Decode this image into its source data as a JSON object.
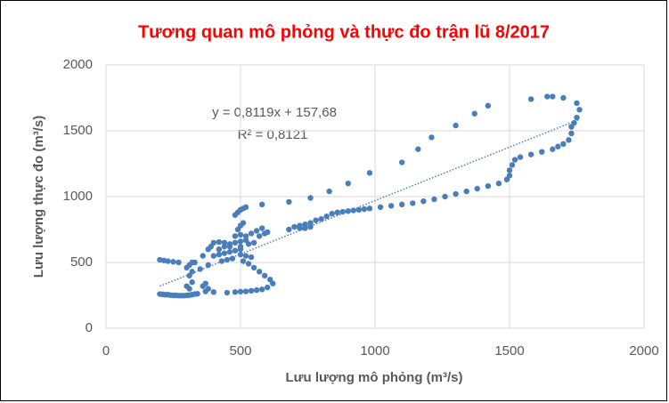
{
  "chart_data": {
    "type": "scatter",
    "title": "Tương quan mô phỏng và thực đo trận lũ 8/2017",
    "x_label": "Lưu lượng mô phỏng (m³/s)",
    "y_label": "Lưu lượng thực đo (m³/s)",
    "color": "#4a7ebb",
    "grid": true,
    "xlim": [
      0,
      2000
    ],
    "ylim": [
      0,
      2000
    ],
    "xticks": [
      0,
      500,
      1000,
      1500,
      2000
    ],
    "yticks": [
      0,
      500,
      1000,
      1500,
      2000
    ],
    "trendline": {
      "slope": 0.8119,
      "intercept": 157.68,
      "label": "y = 0,8119x + 157,68",
      "r2_label": "R² = 0,8121"
    },
    "x": [
      200,
      210,
      220,
      230,
      240,
      250,
      260,
      270,
      280,
      290,
      300,
      310,
      320,
      330,
      340,
      310,
      300,
      320,
      310,
      320,
      300,
      310,
      320,
      200,
      215,
      230,
      250,
      270,
      370,
      400,
      450,
      480,
      500,
      520,
      540,
      560,
      580,
      600,
      620,
      610,
      590,
      570,
      550,
      530,
      510,
      360,
      370,
      380,
      400,
      420,
      440,
      460,
      480,
      500,
      420,
      440,
      460,
      480,
      500,
      520,
      400,
      420,
      440,
      460,
      480,
      500,
      520,
      540,
      560,
      580,
      600,
      500,
      520,
      540,
      470,
      450,
      500,
      530,
      550,
      570,
      590,
      430,
      380,
      350,
      330,
      360,
      380,
      390,
      480,
      490,
      500,
      510,
      520,
      490,
      500,
      510,
      580,
      680,
      760,
      830,
      900,
      980,
      1100,
      1160,
      1210,
      1300,
      1370,
      1420,
      680,
      700,
      720,
      740,
      760,
      780,
      800,
      820,
      840,
      860,
      880,
      900,
      920,
      940,
      960,
      980,
      1020,
      1060,
      1100,
      1140,
      1180,
      1220,
      1260,
      1300,
      1340,
      1380,
      1420,
      1460,
      1490,
      1500,
      1500,
      1510,
      1520,
      1540,
      1580,
      1620,
      1660,
      1680,
      1700,
      1720,
      1730,
      1730,
      1740,
      1750,
      1760,
      1750,
      1700,
      1660,
      1640,
      1580,
      740,
      760,
      720
    ],
    "values": [
      260,
      258,
      255,
      255,
      252,
      250,
      250,
      248,
      248,
      248,
      250,
      252,
      255,
      260,
      262,
      300,
      320,
      350,
      400,
      430,
      460,
      480,
      500,
      520,
      515,
      510,
      505,
      500,
      280,
      275,
      270,
      275,
      278,
      280,
      285,
      290,
      295,
      310,
      340,
      370,
      400,
      430,
      460,
      490,
      510,
      320,
      340,
      300,
      550,
      560,
      570,
      580,
      590,
      600,
      600,
      620,
      640,
      650,
      660,
      670,
      650,
      655,
      650,
      620,
      700,
      710,
      700,
      720,
      740,
      760,
      730,
      560,
      550,
      540,
      530,
      520,
      620,
      640,
      650,
      700,
      720,
      510,
      480,
      450,
      500,
      550,
      600,
      620,
      860,
      880,
      900,
      910,
      920,
      750,
      780,
      800,
      940,
      960,
      990,
      1040,
      1100,
      1180,
      1260,
      1360,
      1450,
      1540,
      1630,
      1690,
      750,
      770,
      780,
      790,
      800,
      820,
      830,
      850,
      870,
      880,
      885,
      890,
      895,
      900,
      905,
      910,
      920,
      930,
      940,
      950,
      965,
      980,
      1000,
      1020,
      1040,
      1060,
      1080,
      1100,
      1130,
      1160,
      1200,
      1240,
      1280,
      1300,
      1320,
      1340,
      1360,
      1380,
      1400,
      1430,
      1480,
      1530,
      1560,
      1600,
      1660,
      1710,
      1750,
      1760,
      1760,
      1740,
      760,
      770,
      760
    ]
  }
}
